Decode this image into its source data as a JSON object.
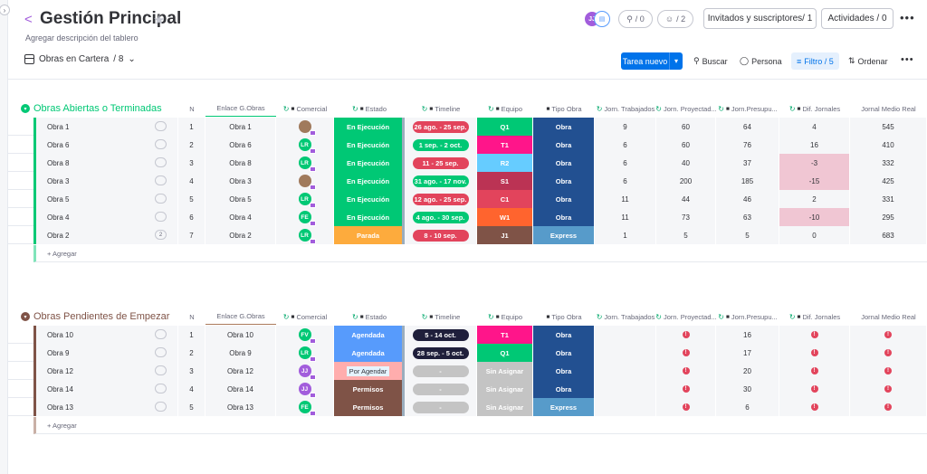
{
  "header": {
    "title": "Gestión Principal",
    "description": "Agregar descripción del tablero",
    "avatars": [
      {
        "initials": "JJ",
        "color": "#a25ddc"
      },
      {
        "initials": "",
        "color": "#579bfc"
      }
    ],
    "search_count": "/ 0",
    "automation_count": "/ 2",
    "invite_label": "Invitados y suscriptores/ 1",
    "activity_label": "Actividades / 0",
    "more": "•••"
  },
  "view": {
    "name": "Obras en Cartera",
    "count": "/ 8",
    "new_item": "Tarea nuevo",
    "search": "Buscar",
    "person": "Persona",
    "filter": "Filtro / 5",
    "sort": "Ordenar",
    "more": "•••"
  },
  "columns": {
    "num": "N",
    "link": "Enlace G.Obras",
    "comercial": "Comercial",
    "estado": "Estado",
    "timeline": "Timeline",
    "equipo": "Equipo",
    "tipo": "Tipo Obra",
    "jorn_trab": "Jorn. Trabajados",
    "jorn_proy": "Jorn. Proyectad...",
    "jorn_pres": "Jorn.Presupu...",
    "dif": "Dif. Jornales",
    "jornal": "Jornal Medio Real"
  },
  "groups": [
    {
      "title": "Obras Abiertas o Terminadas",
      "color": "#00c875",
      "add_label": "+ Agregar",
      "rows": [
        {
          "name": "Obra 1",
          "num": "1",
          "link": "Obra 1",
          "person": "",
          "person_color": "#a07a5c",
          "estado": "En Ejecución",
          "estado_color": "#00c875",
          "timeline": "26 ago. - 25 sep.",
          "timeline_color": "#e2445c",
          "equipo": "Q1",
          "equipo_color": "#00c875",
          "tipo": "Obra",
          "tipo_color": "#225091",
          "jt": "9",
          "jp": "60",
          "jpr": "64",
          "dif": "4",
          "dif_neg": false,
          "jornal": "545",
          "chat": ""
        },
        {
          "name": "Obra 6",
          "num": "2",
          "link": "Obra 6",
          "person": "LR",
          "person_color": "#00c875",
          "estado": "En Ejecución",
          "estado_color": "#00c875",
          "timeline": "1 sep. - 2 oct.",
          "timeline_color": "#00c875",
          "equipo": "T1",
          "equipo_color": "#ff158a",
          "tipo": "Obra",
          "tipo_color": "#225091",
          "jt": "6",
          "jp": "60",
          "jpr": "76",
          "dif": "16",
          "dif_neg": false,
          "jornal": "410",
          "chat": ""
        },
        {
          "name": "Obra 8",
          "num": "3",
          "link": "Obra 8",
          "person": "LR",
          "person_color": "#00c875",
          "estado": "En Ejecución",
          "estado_color": "#00c875",
          "timeline": "11 - 25 sep.",
          "timeline_color": "#e2445c",
          "equipo": "R2",
          "equipo_color": "#66ccff",
          "tipo": "Obra",
          "tipo_color": "#225091",
          "jt": "6",
          "jp": "40",
          "jpr": "37",
          "dif": "-3",
          "dif_neg": true,
          "jornal": "332",
          "chat": ""
        },
        {
          "name": "Obra 3",
          "num": "4",
          "link": "Obra 3",
          "person": "",
          "person_color": "#a07a5c",
          "estado": "En Ejecución",
          "estado_color": "#00c875",
          "timeline": "31 ago. - 17 nov.",
          "timeline_color": "#00c875",
          "equipo": "S1",
          "equipo_color": "#bb3354",
          "tipo": "Obra",
          "tipo_color": "#225091",
          "jt": "6",
          "jp": "200",
          "jpr": "185",
          "dif": "-15",
          "dif_neg": true,
          "jornal": "425",
          "chat": ""
        },
        {
          "name": "Obra 5",
          "num": "5",
          "link": "Obra 5",
          "person": "LR",
          "person_color": "#00c875",
          "estado": "En Ejecución",
          "estado_color": "#00c875",
          "timeline": "12 ago. - 25 sep.",
          "timeline_color": "#e2445c",
          "equipo": "C1",
          "equipo_color": "#e2445c",
          "tipo": "Obra",
          "tipo_color": "#225091",
          "jt": "11",
          "jp": "44",
          "jpr": "46",
          "dif": "2",
          "dif_neg": false,
          "jornal": "331",
          "chat": ""
        },
        {
          "name": "Obra 4",
          "num": "6",
          "link": "Obra 4",
          "person": "FE",
          "person_color": "#00c875",
          "estado": "En Ejecución",
          "estado_color": "#00c875",
          "timeline": "4 ago. - 30 sep.",
          "timeline_color": "#00c875",
          "equipo": "W1",
          "equipo_color": "#ff642e",
          "tipo": "Obra",
          "tipo_color": "#225091",
          "jt": "11",
          "jp": "73",
          "jpr": "63",
          "dif": "-10",
          "dif_neg": true,
          "jornal": "295",
          "chat": ""
        },
        {
          "name": "Obra 2",
          "num": "7",
          "link": "Obra 2",
          "person": "LR",
          "person_color": "#00c875",
          "estado": "Parada",
          "estado_color": "#fdab3d",
          "timeline": "8 - 10 sep.",
          "timeline_color": "#e2445c",
          "equipo": "J1",
          "equipo_color": "#7f5347",
          "tipo": "Express",
          "tipo_color": "#579bca",
          "jt": "1",
          "jp": "5",
          "jpr": "5",
          "dif": "0",
          "dif_neg": false,
          "jornal": "683",
          "chat": "2"
        }
      ]
    },
    {
      "title": "Obras Pendientes de Empezar",
      "color": "#7f5347",
      "add_label": "+ Agregar",
      "rows": [
        {
          "name": "Obra 10",
          "num": "1",
          "link": "Obra 10",
          "person": "FV",
          "person_color": "#00c875",
          "estado": "Agendada",
          "estado_color": "#579bfc",
          "timeline": "5 - 14 oct.",
          "timeline_color": "#1f1f3b",
          "equipo": "T1",
          "equipo_color": "#ff158a",
          "tipo": "Obra",
          "tipo_color": "#225091",
          "jt": "",
          "jp": "!",
          "jpr": "16",
          "dif": "!",
          "jornal": "!"
        },
        {
          "name": "Obra 9",
          "num": "2",
          "link": "Obra 9",
          "person": "LR",
          "person_color": "#00c875",
          "estado": "Agendada",
          "estado_color": "#579bfc",
          "timeline": "28 sep. - 5 oct.",
          "timeline_color": "#1f1f3b",
          "equipo": "Q1",
          "equipo_color": "#00c875",
          "tipo": "Obra",
          "tipo_color": "#225091",
          "jt": "",
          "jp": "!",
          "jpr": "17",
          "dif": "!",
          "jornal": "!"
        },
        {
          "name": "Obra 12",
          "num": "3",
          "link": "Obra 12",
          "person": "JJ",
          "person_color": "#a25ddc",
          "estado": "Por Agendar",
          "estado_color": "#ffadad",
          "timeline": "-",
          "timeline_color": "#c4c4c4",
          "equipo": "Sin Asignar",
          "equipo_color": "#c4c4c4",
          "tipo": "Obra",
          "tipo_color": "#225091",
          "jt": "",
          "jp": "!",
          "jpr": "20",
          "dif": "!",
          "jornal": "!"
        },
        {
          "name": "Obra 14",
          "num": "4",
          "link": "Obra 14",
          "person": "JJ",
          "person_color": "#a25ddc",
          "estado": "Permisos",
          "estado_color": "#7f5347",
          "timeline": "-",
          "timeline_color": "#c4c4c4",
          "equipo": "Sin Asignar",
          "equipo_color": "#c4c4c4",
          "tipo": "Obra",
          "tipo_color": "#225091",
          "jt": "",
          "jp": "!",
          "jpr": "30",
          "dif": "!",
          "jornal": "!"
        },
        {
          "name": "Obra 13",
          "num": "5",
          "link": "Obra 13",
          "person": "FE",
          "person_color": "#00c875",
          "estado": "Permisos",
          "estado_color": "#7f5347",
          "timeline": "-",
          "timeline_color": "#c4c4c4",
          "equipo": "Sin Asignar",
          "equipo_color": "#c4c4c4",
          "tipo": "Express",
          "tipo_color": "#579bca",
          "jt": "",
          "jp": "!",
          "jpr": "6",
          "dif": "!",
          "jornal": "!"
        }
      ]
    }
  ]
}
